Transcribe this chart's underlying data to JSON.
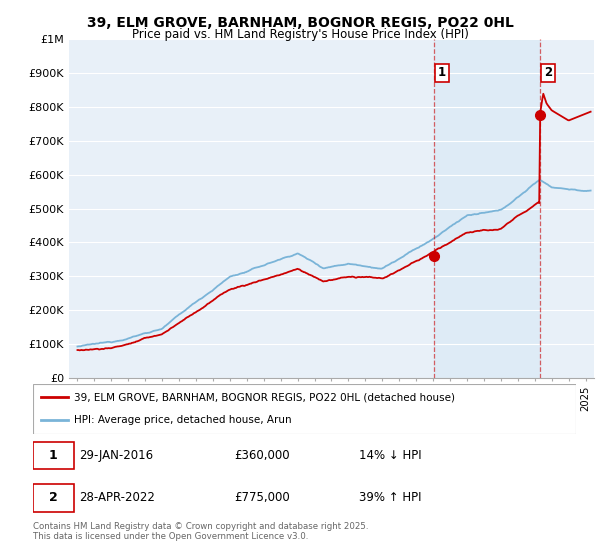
{
  "title": "39, ELM GROVE, BARNHAM, BOGNOR REGIS, PO22 0HL",
  "subtitle": "Price paid vs. HM Land Registry's House Price Index (HPI)",
  "ylabel_ticks": [
    "£0",
    "£100K",
    "£200K",
    "£300K",
    "£400K",
    "£500K",
    "£600K",
    "£700K",
    "£800K",
    "£900K",
    "£1M"
  ],
  "ytick_values": [
    0,
    100000,
    200000,
    300000,
    400000,
    500000,
    600000,
    700000,
    800000,
    900000,
    1000000
  ],
  "xlim": [
    1994.5,
    2025.5
  ],
  "ylim": [
    0,
    1000000
  ],
  "hpi_color": "#7ab4d8",
  "price_color": "#cc0000",
  "marker_color": "#cc0000",
  "vline_color": "#cc0000",
  "vline_alpha": 0.6,
  "shade_color": "#d8e8f5",
  "shade_alpha": 0.6,
  "sale1_year": 2016.08,
  "sale1_price": 360000,
  "sale2_year": 2022.33,
  "sale2_price": 775000,
  "legend_property": "39, ELM GROVE, BARNHAM, BOGNOR REGIS, PO22 0HL (detached house)",
  "legend_hpi": "HPI: Average price, detached house, Arun",
  "footnote_row1": "Contains HM Land Registry data © Crown copyright and database right 2025.",
  "footnote_row2": "This data is licensed under the Open Government Licence v3.0.",
  "table_row1": [
    "1",
    "29-JAN-2016",
    "£360,000",
    "14% ↓ HPI"
  ],
  "table_row2": [
    "2",
    "28-APR-2022",
    "£775,000",
    "39% ↑ HPI"
  ],
  "background_color": "#ffffff",
  "plot_bg_color": "#e8f0f8",
  "grid_color": "#ffffff"
}
